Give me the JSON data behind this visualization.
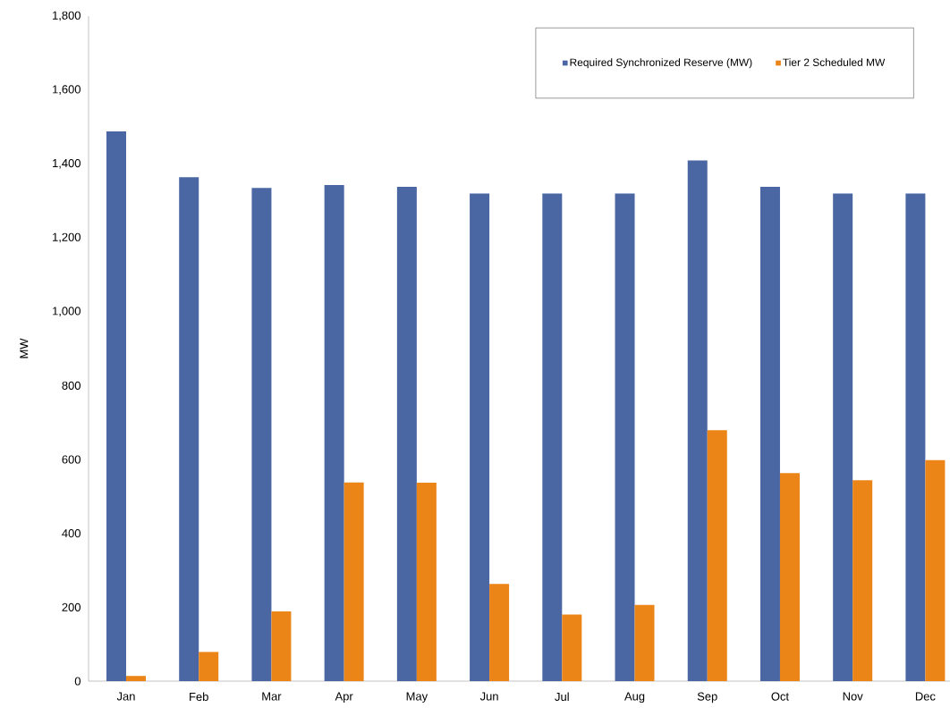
{
  "chart_data": {
    "type": "bar",
    "ylabel": "MW",
    "categories": [
      "Jan",
      "Feb",
      "Mar",
      "Apr",
      "May",
      "Jun",
      "Jul",
      "Aug",
      "Sep",
      "Oct",
      "Nov",
      "Dec"
    ],
    "series": [
      {
        "name": "Required Synchronized Reserve (MW)",
        "color": "#4a67a3",
        "values": [
          1488,
          1364,
          1335,
          1343,
          1338,
          1320,
          1320,
          1320,
          1409,
          1338,
          1320,
          1320
        ]
      },
      {
        "name": "Tier 2 Scheduled MW",
        "color": "#eb8518",
        "values": [
          14,
          79,
          189,
          538,
          537,
          263,
          180,
          206,
          679,
          563,
          544,
          598
        ]
      }
    ],
    "ylim": [
      0,
      1800
    ],
    "yticks": [
      0,
      200,
      400,
      600,
      800,
      {
        "value": 1000,
        "label": "1,000"
      },
      {
        "value": 1200,
        "label": "1,200"
      },
      {
        "value": 1400,
        "label": "1,400"
      },
      {
        "value": 1600,
        "label": "1,600"
      },
      {
        "value": 1800,
        "label": "1,800"
      }
    ],
    "grid": false,
    "legend": "top right"
  }
}
